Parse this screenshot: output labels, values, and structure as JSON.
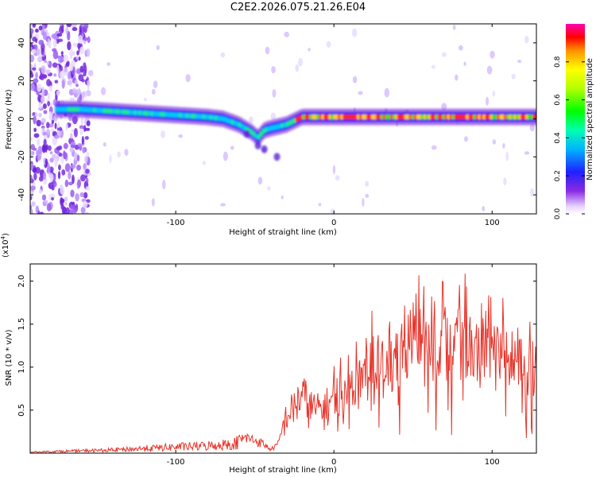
{
  "title": "C2E2.2026.075.21.26.E04",
  "chart_data": [
    {
      "type": "heatmap",
      "xlabel": "Height of straight line (km)",
      "ylabel": "Frequency (Hz)",
      "xlim": [
        -192,
        128
      ],
      "ylim": [
        -50,
        50
      ],
      "xticks": [
        -100,
        0,
        100
      ],
      "yticks": [
        -40,
        -20,
        0,
        20,
        40
      ],
      "colorbar": {
        "label": "Normalized spectral amplitude",
        "range": [
          0,
          1
        ],
        "ticks": [
          "0.0",
          "0.2",
          "0.4",
          "0.6",
          "0.8"
        ]
      },
      "ridge": {
        "x": [
          -175,
          -160,
          -140,
          -120,
          -100,
          -80,
          -70,
          -60,
          -52,
          -48,
          -44,
          -40,
          -35,
          -30,
          -25,
          -20,
          -10,
          0,
          20,
          40,
          60,
          80,
          100,
          128
        ],
        "y": [
          5,
          5,
          4,
          3,
          2,
          1,
          0,
          -3,
          -7,
          -10,
          -6,
          -5,
          -4,
          -3,
          -1,
          1,
          1,
          1,
          1,
          1,
          1,
          1,
          1,
          1
        ]
      }
    },
    {
      "type": "line",
      "xlabel": "Height of straight line (km)",
      "ylabel": "SNR (10 * v/v)",
      "yscale_label": "(x10^4)",
      "xlim": [
        -192,
        128
      ],
      "ylim": [
        0,
        2.2
      ],
      "xticks": [
        -100,
        0,
        100
      ],
      "yticks": [
        0.5,
        1.0,
        1.5,
        2.0
      ],
      "series": [
        {
          "envelope": {
            "x": [
              -192,
              -140,
              -100,
              -80,
              -65,
              -55,
              -45,
              -40,
              -35,
              -32,
              -30,
              -25,
              -20,
              -15,
              -10,
              -5,
              0,
              10,
              20,
              25,
              30,
              40,
              50,
              60,
              70,
              80,
              90,
              100,
              110,
              120,
              128
            ],
            "y": [
              0.02,
              0.06,
              0.12,
              0.14,
              0.18,
              0.25,
              0.16,
              0.06,
              0.15,
              0.45,
              0.6,
              0.75,
              0.95,
              0.75,
              0.7,
              0.75,
              0.9,
              1.0,
              1.25,
              1.5,
              1.3,
              1.4,
              1.8,
              1.6,
              1.7,
              1.8,
              1.6,
              1.55,
              1.5,
              1.45,
              1.35
            ]
          },
          "color": "#e8342a"
        }
      ]
    }
  ]
}
